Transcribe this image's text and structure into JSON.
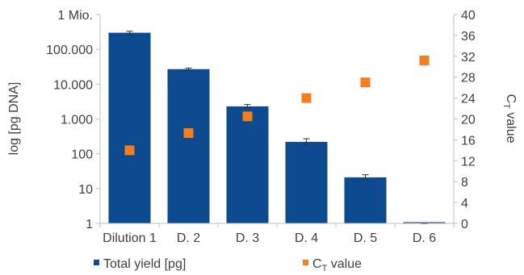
{
  "chart_data": {
    "type": "bar",
    "categories": [
      "Dilution 1",
      "D. 2",
      "D. 3",
      "D. 4",
      "D. 5",
      "D. 6"
    ],
    "series": [
      {
        "name": "Total yield [pg]",
        "axis": "left",
        "mark": "bar",
        "color": "#0d4a8f",
        "values": [
          300000,
          27000,
          2300,
          220,
          21,
          1
        ],
        "error_low": [
          270000,
          25000,
          2050,
          175,
          18,
          0.98
        ],
        "error_high": [
          330000,
          29000,
          2600,
          270,
          25,
          1.02
        ]
      },
      {
        "name_prefix": "C",
        "name_subscript": "T",
        "name_suffix": " value",
        "axis": "right",
        "mark": "square",
        "color": "#f47f20",
        "values": [
          14,
          17.3,
          20.5,
          24,
          27,
          31.2
        ]
      }
    ],
    "left_axis": {
      "label": "log [pg DNA]",
      "scale": "log",
      "ylim": [
        1,
        1000000
      ],
      "tick_values": [
        1,
        10,
        100,
        1000,
        10000,
        100000,
        1000000
      ],
      "tick_labels": [
        "1",
        "10",
        "100",
        "1.000",
        "10.000",
        "100.000",
        "1 Mio."
      ]
    },
    "right_axis": {
      "label_prefix": "C",
      "label_subscript": "T",
      "label_suffix": " value",
      "scale": "linear",
      "ylim": [
        0,
        40
      ],
      "tick_values": [
        0,
        4,
        8,
        12,
        16,
        20,
        24,
        28,
        32,
        36,
        40
      ]
    },
    "grid": false,
    "legend_position": "bottom"
  }
}
